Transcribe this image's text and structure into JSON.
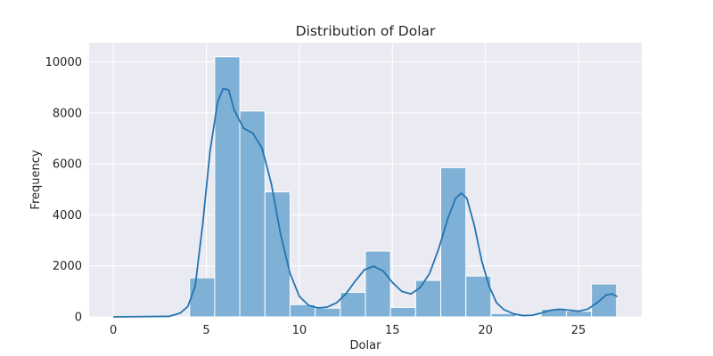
{
  "chart_data": {
    "type": "bar",
    "title": "Distribution of Dolar",
    "xlabel": "Dolar",
    "ylabel": "Frequency",
    "xlim": [
      -1.3,
      28.4
    ],
    "ylim": [
      0,
      10750
    ],
    "xticks": [
      0,
      5,
      10,
      15,
      20,
      25
    ],
    "yticks": [
      0,
      2000,
      4000,
      6000,
      8000,
      10000
    ],
    "grid": true,
    "bins": [
      {
        "start": 4.1,
        "end": 5.45,
        "count": 1530
      },
      {
        "start": 5.45,
        "end": 6.8,
        "count": 10200
      },
      {
        "start": 6.8,
        "end": 8.15,
        "count": 8070
      },
      {
        "start": 8.15,
        "end": 9.5,
        "count": 4900
      },
      {
        "start": 9.5,
        "end": 10.85,
        "count": 480
      },
      {
        "start": 10.85,
        "end": 12.2,
        "count": 340
      },
      {
        "start": 12.2,
        "end": 13.55,
        "count": 960
      },
      {
        "start": 13.55,
        "end": 14.9,
        "count": 2580
      },
      {
        "start": 14.9,
        "end": 16.25,
        "count": 370
      },
      {
        "start": 16.25,
        "end": 17.6,
        "count": 1430
      },
      {
        "start": 17.6,
        "end": 18.95,
        "count": 5850
      },
      {
        "start": 18.95,
        "end": 20.3,
        "count": 1600
      },
      {
        "start": 20.3,
        "end": 21.65,
        "count": 130
      },
      {
        "start": 21.65,
        "end": 23.0,
        "count": 20
      },
      {
        "start": 23.0,
        "end": 24.35,
        "count": 300
      },
      {
        "start": 24.35,
        "end": 25.7,
        "count": 220
      },
      {
        "start": 25.7,
        "end": 27.05,
        "count": 1290
      }
    ],
    "kde": {
      "x": [
        0,
        3.0,
        3.6,
        4.0,
        4.4,
        4.8,
        5.2,
        5.6,
        5.9,
        6.2,
        6.5,
        7.0,
        7.5,
        8.0,
        8.5,
        9.0,
        9.5,
        10.0,
        10.5,
        11.0,
        11.5,
        12.0,
        12.5,
        13.0,
        13.5,
        14.0,
        14.5,
        15.0,
        15.5,
        16.0,
        16.5,
        17.0,
        17.5,
        18.0,
        18.4,
        18.7,
        19.0,
        19.4,
        19.8,
        20.2,
        20.6,
        21.0,
        21.5,
        22.0,
        22.5,
        23.0,
        23.5,
        24.0,
        24.5,
        25.0,
        25.5,
        26.0,
        26.5,
        26.8,
        27.1
      ],
      "y": [
        0,
        20,
        150,
        400,
        1200,
        3600,
        6500,
        8400,
        8950,
        8900,
        8100,
        7400,
        7200,
        6600,
        5200,
        3200,
        1700,
        800,
        450,
        350,
        380,
        550,
        900,
        1400,
        1850,
        1980,
        1800,
        1350,
        1000,
        900,
        1150,
        1700,
        2700,
        3900,
        4650,
        4850,
        4650,
        3600,
        2200,
        1200,
        550,
        280,
        120,
        50,
        60,
        150,
        260,
        300,
        260,
        220,
        300,
        550,
        860,
        900,
        790
      ]
    },
    "colors": {
      "background": "#eaeaf2",
      "grid": "#ffffff",
      "bar_fill": "#7fb0d5",
      "bar_edge": "#ffffff",
      "line": "#2474b0",
      "text": "#262626"
    }
  }
}
